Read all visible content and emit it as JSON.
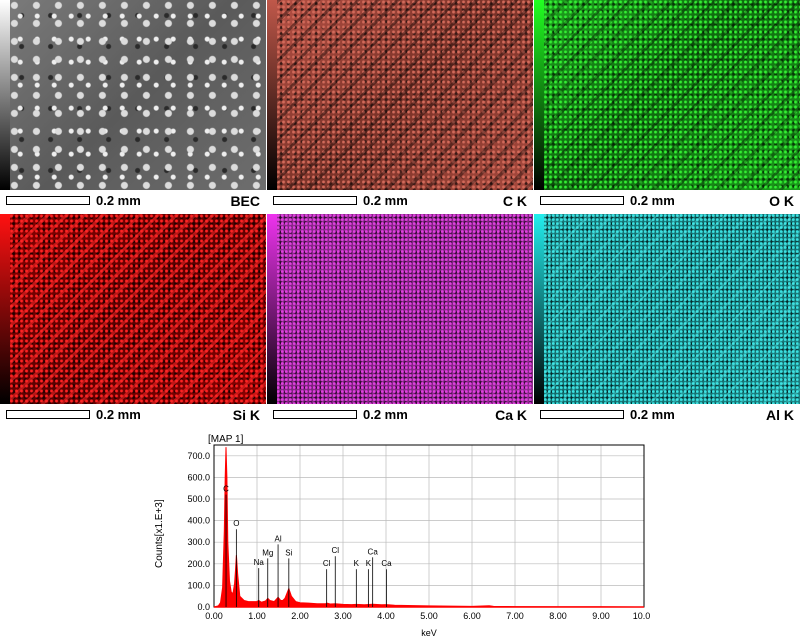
{
  "maps": [
    {
      "id": "bec",
      "label": "BEC",
      "scale": "0.2 mm",
      "color": "#9a9a9a"
    },
    {
      "id": "ck",
      "label": "C K",
      "scale": "0.2 mm",
      "color": "#c0584a"
    },
    {
      "id": "ok",
      "label": "O K",
      "scale": "0.2 mm",
      "color": "#22cc22"
    },
    {
      "id": "sik",
      "label": "Si K",
      "scale": "0.2 mm",
      "color": "#ee1111"
    },
    {
      "id": "cak",
      "label": "Ca K",
      "scale": "0.2 mm",
      "color": "#cc33cc"
    },
    {
      "id": "alk",
      "label": "Al K",
      "scale": "0.2 mm",
      "color": "#22cccc"
    }
  ],
  "spectrum": {
    "map_label": "[MAP 1]",
    "xlabel": "keV",
    "ylabel": "Counts[x1.E+3]",
    "xticks": [
      "0.00",
      "1.00",
      "2.00",
      "3.00",
      "4.00",
      "5.00",
      "6.00",
      "7.00",
      "8.00",
      "9.00",
      "10.00"
    ],
    "yticks": [
      "0.0",
      "100.0",
      "200.0",
      "300.0",
      "400.0",
      "500.0",
      "600.0",
      "700.0"
    ],
    "peak_labels": [
      {
        "text": "C",
        "kev": 0.28,
        "level": 520
      },
      {
        "text": "O",
        "kev": 0.52,
        "level": 360
      },
      {
        "text": "Na",
        "kev": 1.04,
        "level": 180
      },
      {
        "text": "Mg",
        "kev": 1.25,
        "level": 225
      },
      {
        "text": "Al",
        "kev": 1.49,
        "level": 290
      },
      {
        "text": "Si",
        "kev": 1.74,
        "level": 225
      },
      {
        "text": "Cl",
        "kev": 2.62,
        "level": 175
      },
      {
        "text": "Cl",
        "kev": 2.82,
        "level": 235
      },
      {
        "text": "K",
        "kev": 3.31,
        "level": 175
      },
      {
        "text": "Ca",
        "kev": 3.69,
        "level": 230
      },
      {
        "text": "K",
        "kev": 3.59,
        "level": 175
      },
      {
        "text": "Ca",
        "kev": 4.01,
        "level": 175
      }
    ]
  },
  "chart_data": {
    "type": "line",
    "title": "[MAP 1]",
    "xlabel": "keV",
    "ylabel": "Counts[x1.E+3]",
    "xlim": [
      0,
      10
    ],
    "ylim": [
      0,
      750
    ],
    "grid": true,
    "series": [
      {
        "color": "#ff0000",
        "x": [
          0,
          0.1,
          0.15,
          0.2,
          0.24,
          0.26,
          0.28,
          0.3,
          0.32,
          0.36,
          0.4,
          0.44,
          0.48,
          0.5,
          0.52,
          0.55,
          0.6,
          0.7,
          0.8,
          0.9,
          1.0,
          1.04,
          1.1,
          1.2,
          1.25,
          1.3,
          1.4,
          1.49,
          1.55,
          1.6,
          1.65,
          1.7,
          1.74,
          1.8,
          1.9,
          2.0,
          2.2,
          2.4,
          2.6,
          2.62,
          2.7,
          2.82,
          3.0,
          3.2,
          3.31,
          3.5,
          3.69,
          3.9,
          4.01,
          4.2,
          4.5,
          5.0,
          5.5,
          6.0,
          6.4,
          6.5,
          7.0,
          8.0,
          9.0,
          10.0
        ],
        "y": [
          0,
          5,
          20,
          90,
          350,
          600,
          740,
          600,
          300,
          120,
          70,
          60,
          110,
          170,
          240,
          150,
          50,
          30,
          25,
          25,
          25,
          30,
          22,
          28,
          40,
          30,
          25,
          45,
          30,
          30,
          40,
          65,
          85,
          50,
          25,
          20,
          18,
          15,
          15,
          18,
          14,
          15,
          12,
          11,
          12,
          10,
          13,
          10,
          11,
          8,
          7,
          5,
          4,
          3,
          6,
          3,
          2,
          1,
          1,
          0
        ]
      }
    ],
    "annotations": [
      "C",
      "O",
      "Na",
      "Mg",
      "Al",
      "Si",
      "Cl",
      "Cl",
      "K",
      "Ca",
      "K",
      "Ca"
    ]
  }
}
